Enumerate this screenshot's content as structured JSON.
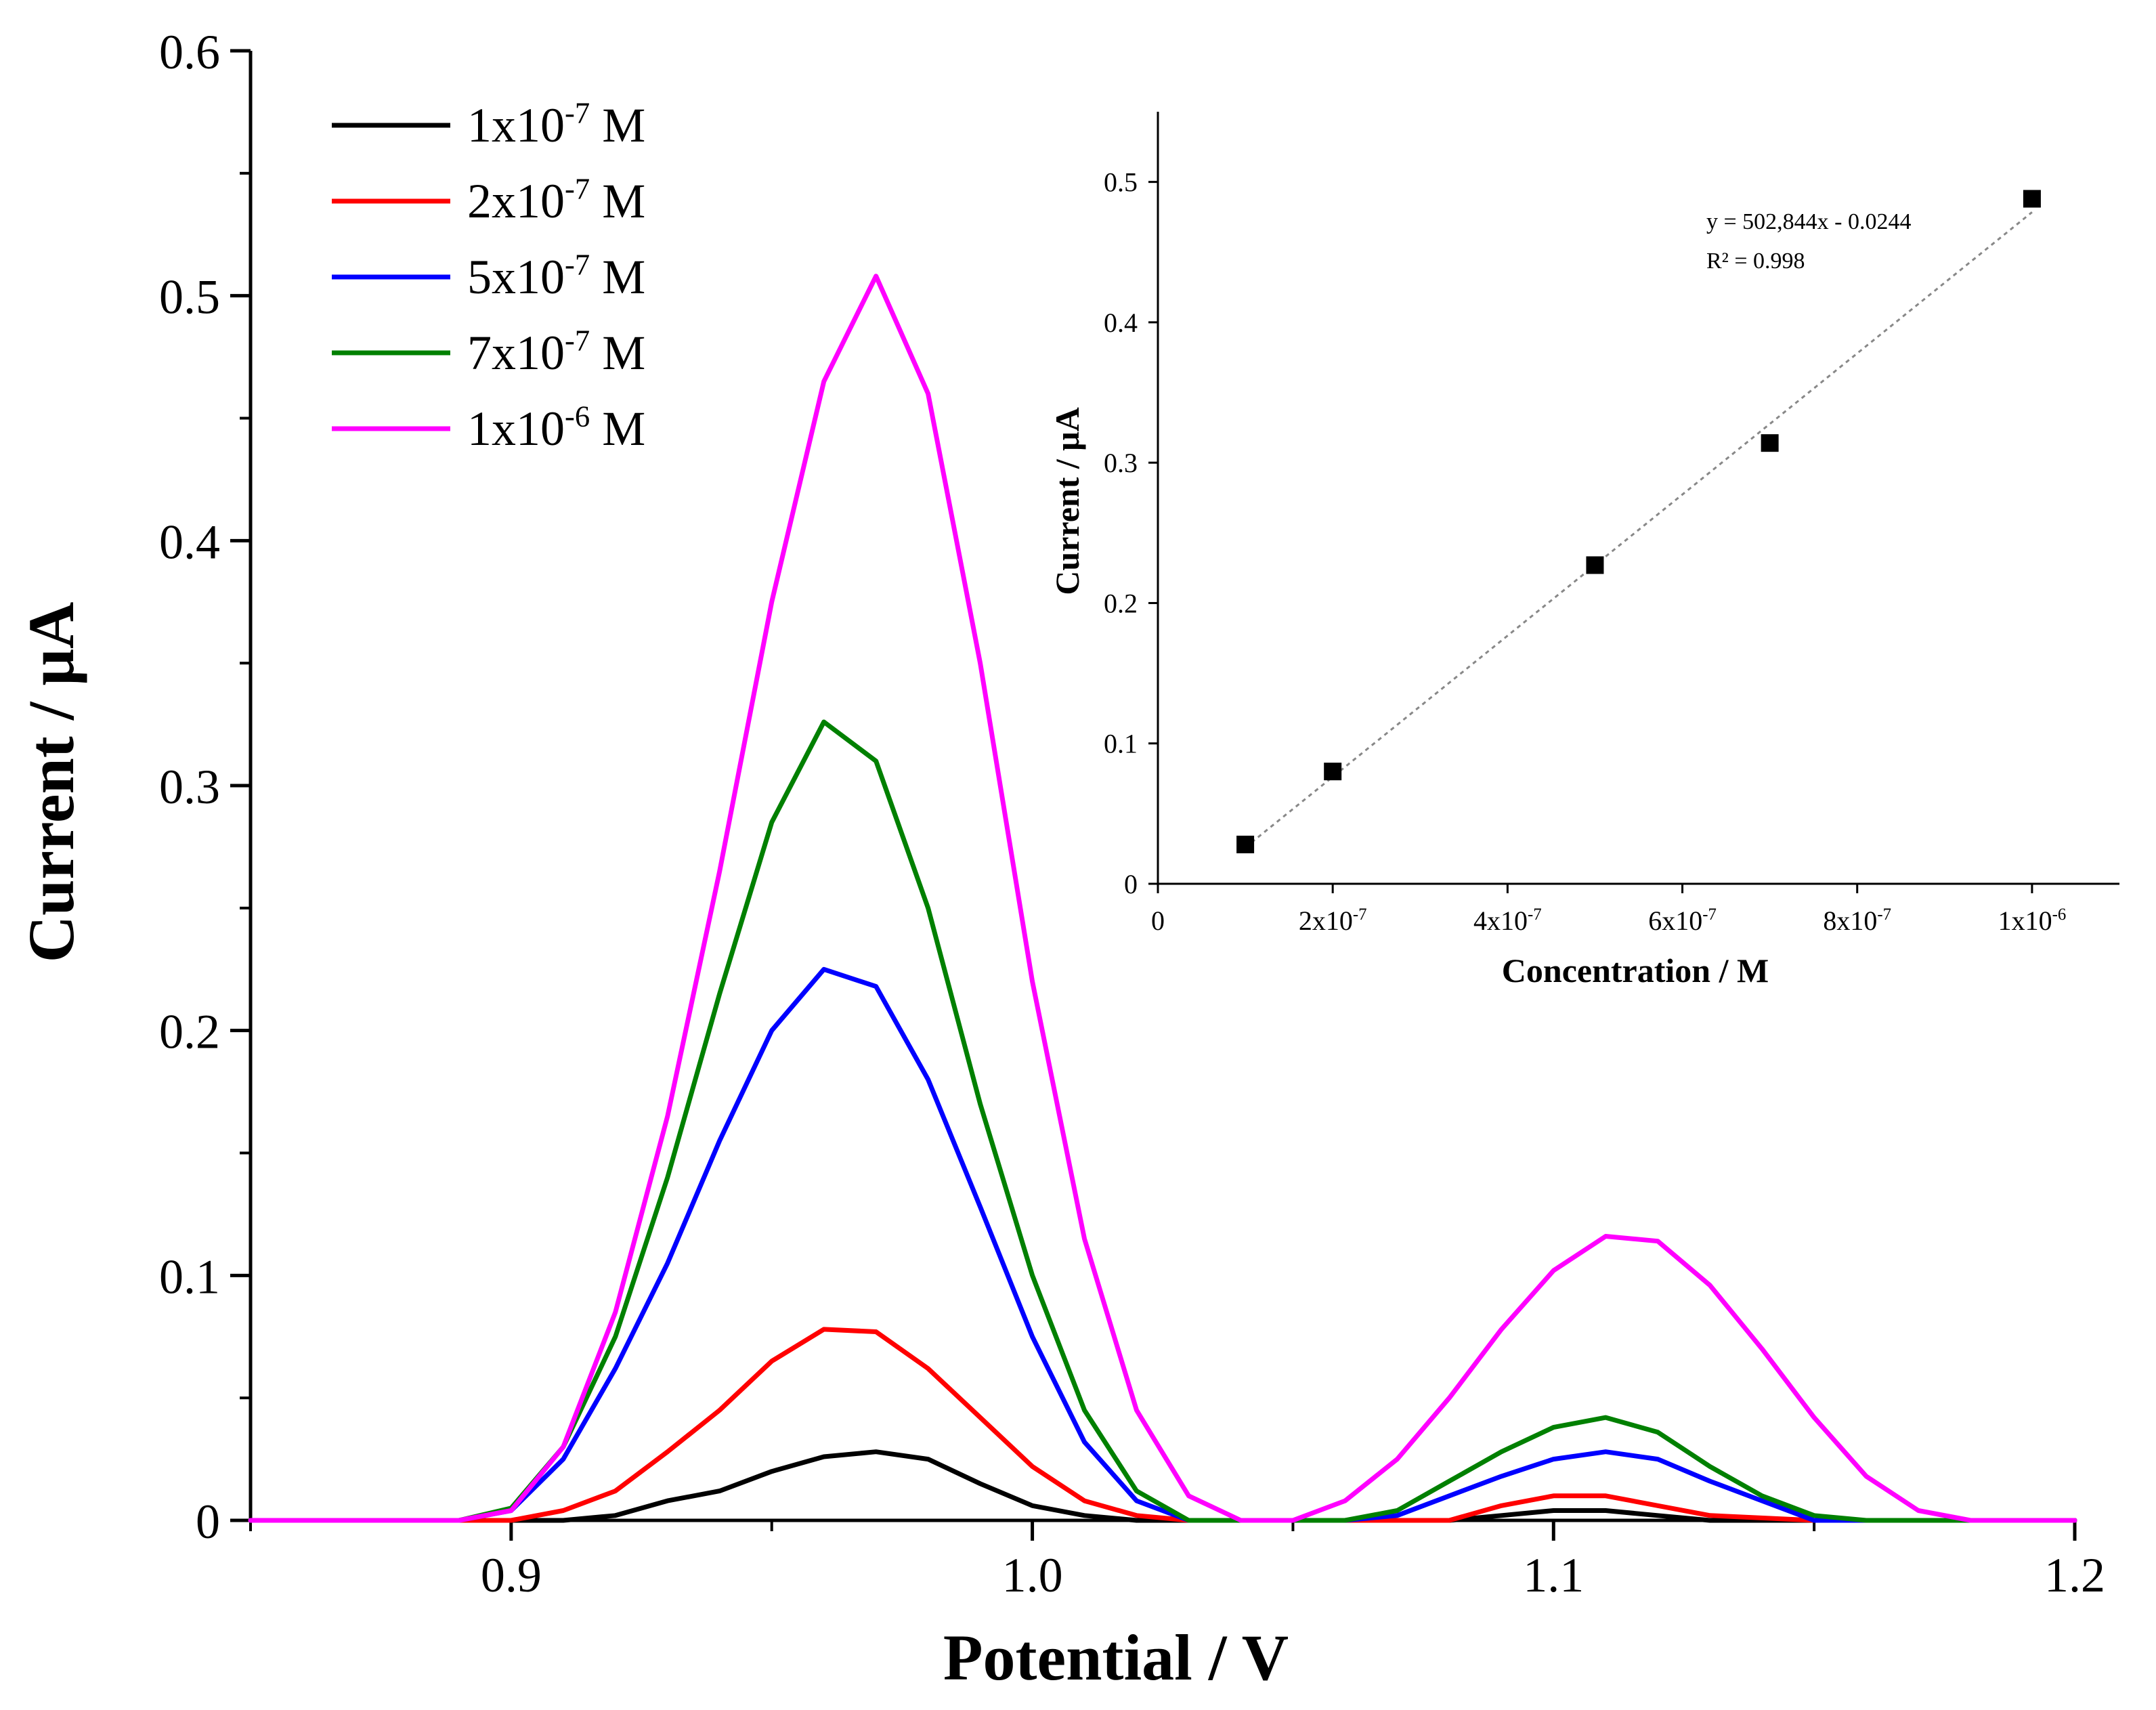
{
  "chart_data": [
    {
      "type": "line",
      "xlabel": "Potential / V",
      "ylabel": "Current / μA",
      "xlim": [
        0.85,
        1.2
      ],
      "ylim": [
        0,
        0.6
      ],
      "xticks": [
        0.9,
        1.0,
        1.1,
        1.2
      ],
      "xtick_labels": [
        "0.9",
        "1.0",
        "1.1",
        "1.2"
      ],
      "yticks": [
        0,
        0.1,
        0.2,
        0.3,
        0.4,
        0.5,
        0.6
      ],
      "ytick_labels": [
        "0",
        "0.1",
        "0.2",
        "0.3",
        "0.4",
        "0.5",
        "0.6"
      ],
      "grid": false,
      "legend_position": "top-left",
      "series": [
        {
          "name": "1x10-7 M",
          "legend_base": "1x10",
          "legend_exp": "-7",
          "legend_unit": " M",
          "color": "#000000",
          "x": [
            0.85,
            0.9,
            0.91,
            0.92,
            0.93,
            0.94,
            0.95,
            0.96,
            0.97,
            0.98,
            0.99,
            1.0,
            1.01,
            1.02,
            1.03,
            1.05,
            1.08,
            1.09,
            1.1,
            1.11,
            1.12,
            1.13,
            1.15,
            1.2
          ],
          "y": [
            0,
            0,
            0,
            0.002,
            0.008,
            0.012,
            0.02,
            0.026,
            0.028,
            0.025,
            0.015,
            0.006,
            0.002,
            0,
            0,
            0,
            0,
            0.002,
            0.004,
            0.004,
            0.002,
            0,
            0,
            0
          ]
        },
        {
          "name": "2x10-7 M",
          "legend_base": "2x10",
          "legend_exp": "-7",
          "legend_unit": " M",
          "color": "#ff0000",
          "x": [
            0.85,
            0.9,
            0.91,
            0.92,
            0.93,
            0.94,
            0.95,
            0.96,
            0.97,
            0.98,
            0.99,
            1.0,
            1.01,
            1.02,
            1.03,
            1.05,
            1.08,
            1.09,
            1.1,
            1.11,
            1.12,
            1.13,
            1.15,
            1.2
          ],
          "y": [
            0,
            0,
            0.004,
            0.012,
            0.028,
            0.045,
            0.065,
            0.078,
            0.077,
            0.062,
            0.042,
            0.022,
            0.008,
            0.002,
            0,
            0,
            0,
            0.006,
            0.01,
            0.01,
            0.006,
            0.002,
            0,
            0
          ]
        },
        {
          "name": "5x10-7 M",
          "legend_base": "5x10",
          "legend_exp": "-7",
          "legend_unit": " M",
          "color": "#0000ff",
          "x": [
            0.85,
            0.89,
            0.9,
            0.91,
            0.92,
            0.93,
            0.94,
            0.95,
            0.96,
            0.97,
            0.98,
            0.99,
            1.0,
            1.01,
            1.02,
            1.03,
            1.06,
            1.07,
            1.08,
            1.09,
            1.1,
            1.11,
            1.12,
            1.13,
            1.14,
            1.15,
            1.2
          ],
          "y": [
            0,
            0,
            0.004,
            0.025,
            0.062,
            0.105,
            0.155,
            0.2,
            0.225,
            0.218,
            0.18,
            0.128,
            0.075,
            0.032,
            0.008,
            0,
            0,
            0.002,
            0.01,
            0.018,
            0.025,
            0.028,
            0.025,
            0.016,
            0.008,
            0,
            0
          ]
        },
        {
          "name": "7x10-7 M",
          "legend_base": "7x10",
          "legend_exp": "-7",
          "legend_unit": " M",
          "color": "#008000",
          "x": [
            0.85,
            0.89,
            0.9,
            0.91,
            0.92,
            0.93,
            0.94,
            0.95,
            0.96,
            0.97,
            0.98,
            0.99,
            1.0,
            1.01,
            1.02,
            1.03,
            1.06,
            1.07,
            1.08,
            1.09,
            1.1,
            1.11,
            1.12,
            1.13,
            1.14,
            1.15,
            1.16,
            1.2
          ],
          "y": [
            0,
            0,
            0.005,
            0.03,
            0.075,
            0.14,
            0.215,
            0.285,
            0.326,
            0.31,
            0.25,
            0.17,
            0.1,
            0.045,
            0.012,
            0,
            0,
            0.004,
            0.016,
            0.028,
            0.038,
            0.042,
            0.036,
            0.022,
            0.01,
            0.002,
            0,
            0
          ]
        },
        {
          "name": "1x10-6 M",
          "legend_base": "1x10",
          "legend_exp": "-6",
          "legend_unit": " M",
          "color": "#ff00ff",
          "x": [
            0.85,
            0.89,
            0.9,
            0.91,
            0.92,
            0.93,
            0.94,
            0.95,
            0.96,
            0.97,
            0.98,
            0.99,
            1.0,
            1.01,
            1.02,
            1.03,
            1.04,
            1.05,
            1.06,
            1.07,
            1.08,
            1.09,
            1.1,
            1.11,
            1.12,
            1.13,
            1.14,
            1.15,
            1.16,
            1.17,
            1.18,
            1.2
          ],
          "y": [
            0,
            0,
            0.004,
            0.03,
            0.085,
            0.165,
            0.265,
            0.375,
            0.465,
            0.508,
            0.46,
            0.35,
            0.22,
            0.115,
            0.045,
            0.01,
            0,
            0,
            0.008,
            0.025,
            0.05,
            0.078,
            0.102,
            0.116,
            0.114,
            0.096,
            0.07,
            0.042,
            0.018,
            0.004,
            0,
            0
          ]
        }
      ]
    },
    {
      "type": "scatter",
      "xlabel": "Concentration / M",
      "ylabel": "Current / μA",
      "xlim": [
        0,
        1.1e-06
      ],
      "ylim": [
        0,
        0.55
      ],
      "xtick_values": [
        0,
        2e-07,
        4e-07,
        6e-07,
        8e-07,
        1e-06
      ],
      "xtick_labels": [
        {
          "base": "0",
          "exp": ""
        },
        {
          "base": "2x10",
          "exp": "-7"
        },
        {
          "base": "4x10",
          "exp": "-7"
        },
        {
          "base": "6x10",
          "exp": "-7"
        },
        {
          "base": "8x10",
          "exp": "-7"
        },
        {
          "base": "1x10",
          "exp": "-6"
        }
      ],
      "yticks": [
        0,
        0.1,
        0.2,
        0.3,
        0.4,
        0.5
      ],
      "ytick_labels": [
        "0",
        "0.1",
        "0.2",
        "0.3",
        "0.4",
        "0.5"
      ],
      "grid": false,
      "points": {
        "x": [
          1e-07,
          2e-07,
          5e-07,
          7e-07,
          1e-06
        ],
        "y": [
          0.028,
          0.08,
          0.227,
          0.314,
          0.488
        ]
      },
      "fit": {
        "slope": 502844,
        "intercept": -0.0244,
        "equation": "y = 502,844x - 0.0244",
        "r2": "R² = 0.998"
      }
    }
  ]
}
